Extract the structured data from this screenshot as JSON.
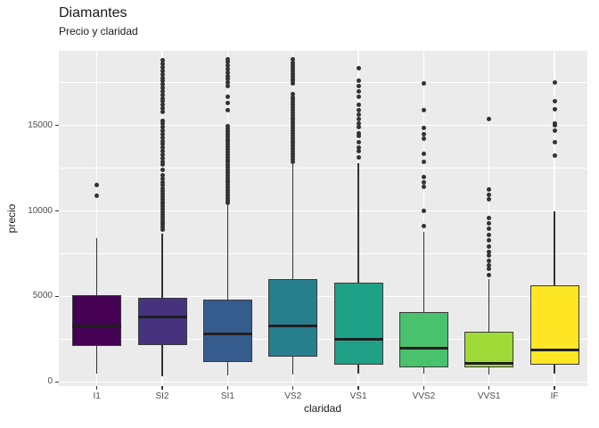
{
  "header": {
    "title": "Diamantes",
    "subtitle": "Precio y claridad"
  },
  "chart_data": {
    "type": "boxplot",
    "title": "Diamantes",
    "subtitle": "Precio y claridad",
    "xlabel": "claridad",
    "ylabel": "precio",
    "categories": [
      "I1",
      "SI2",
      "SI1",
      "VS2",
      "VS1",
      "VVS2",
      "VVS1",
      "IF"
    ],
    "y_ticks": [
      0,
      5000,
      10000,
      15000
    ],
    "y_tick_labels": [
      "0",
      "5000",
      "10000",
      "15000"
    ],
    "y_minor_ticks": [
      2500,
      7500,
      12500,
      17500
    ],
    "ylim": [
      -300,
      19400
    ],
    "grid": "on",
    "panel_background": "#EBEBEB",
    "grid_color": "#FFFFFF",
    "outline_color": "#333333",
    "box_fill_colors": [
      "#440154",
      "#46337E",
      "#365C8D",
      "#277F8E",
      "#1FA187",
      "#4AC16D",
      "#A0DA39",
      "#FDE725"
    ],
    "series": [
      {
        "name": "I1",
        "whisker_low": 470,
        "q1": 2100,
        "median": 3300,
        "q3": 5075,
        "whisker_high": 8430,
        "outliers": [
          10900,
          11530
        ]
      },
      {
        "name": "SI2",
        "whisker_low": 345,
        "q1": 2170,
        "median": 3820,
        "q3": 4900,
        "whisker_high": 8680,
        "outliers": [
          8900,
          9050,
          9200,
          9350,
          9500,
          9650,
          9800,
          9950,
          10100,
          10250,
          10400,
          10550,
          10700,
          10850,
          11000,
          11150,
          11300,
          11500,
          11700,
          11900,
          12100,
          12400,
          12700,
          12900,
          13100,
          13300,
          13500,
          13700,
          13900,
          14100,
          14300,
          14500,
          14700,
          14900,
          15100,
          15250,
          15800,
          16000,
          16200,
          16400,
          16600,
          16800,
          17000,
          17200,
          17400,
          17600,
          17800,
          18000,
          18200,
          18400,
          18600,
          18800
        ]
      },
      {
        "name": "SI1",
        "whisker_low": 400,
        "q1": 1160,
        "median": 2820,
        "q3": 4830,
        "whisker_high": 10340,
        "outliers": [
          10450,
          10600,
          10750,
          10900,
          11050,
          11200,
          11350,
          11500,
          11650,
          11800,
          11950,
          12100,
          12250,
          12400,
          12550,
          12700,
          12850,
          13000,
          13150,
          13300,
          13450,
          13600,
          13750,
          13900,
          14050,
          14200,
          14350,
          14500,
          14650,
          14800,
          14950,
          15900,
          16340,
          16690,
          17300,
          17500,
          17700,
          17900,
          18100,
          18300,
          18500,
          18700,
          18860
        ]
      },
      {
        "name": "VS2",
        "whisker_low": 435,
        "q1": 1480,
        "median": 3300,
        "q3": 6000,
        "whisker_high": 12780,
        "outliers": [
          12900,
          13050,
          13200,
          13350,
          13500,
          13650,
          13800,
          13950,
          14100,
          14250,
          14400,
          14550,
          14700,
          14850,
          15000,
          15150,
          15300,
          15450,
          15600,
          15750,
          15900,
          16050,
          16200,
          16350,
          16500,
          16650,
          16860,
          17470,
          17600,
          17750,
          17900,
          18050,
          18200,
          18350,
          18500,
          18650,
          18860
        ]
      },
      {
        "name": "VS1",
        "whisker_low": 470,
        "q1": 990,
        "median": 2520,
        "q3": 5820,
        "whisker_high": 12780,
        "outliers": [
          13120,
          13500,
          13700,
          14000,
          14400,
          14520,
          14900,
          15100,
          15400,
          15650,
          15900,
          16200,
          16700,
          17000,
          17300,
          17600,
          18340
        ]
      },
      {
        "name": "VVS2",
        "whisker_low": 470,
        "q1": 865,
        "median": 2000,
        "q3": 4085,
        "whisker_high": 8800,
        "outliers": [
          9100,
          10000,
          11400,
          11700,
          12000,
          12900,
          13350,
          14250,
          14500,
          14860,
          15900,
          17450
        ]
      },
      {
        "name": "VVS1",
        "whisker_low": 435,
        "q1": 835,
        "median": 1100,
        "q3": 2950,
        "whisker_high": 6000,
        "outliers": [
          6260,
          6600,
          6800,
          7100,
          7400,
          7600,
          7900,
          8300,
          8600,
          8950,
          9300,
          9600,
          10660,
          10970,
          11280,
          15390
        ]
      },
      {
        "name": "IF",
        "whisker_low": 470,
        "q1": 990,
        "median": 1860,
        "q3": 5650,
        "whisker_high": 9990,
        "outliers": [
          13250,
          14000,
          14700,
          15000,
          15100,
          15940,
          16430,
          17510
        ]
      }
    ]
  }
}
